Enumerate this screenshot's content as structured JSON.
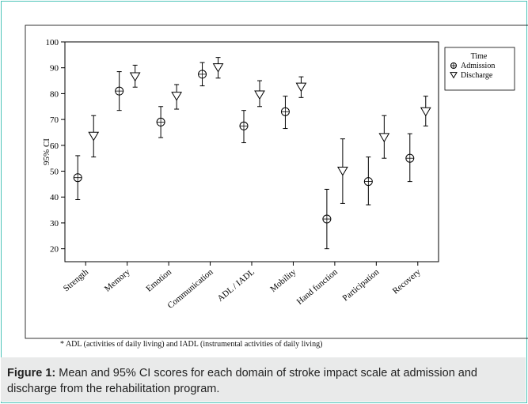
{
  "chart_data": {
    "type": "errorbar",
    "ylabel": "95% CI",
    "ylim": [
      15,
      100
    ],
    "yticks": [
      20,
      30,
      40,
      50,
      60,
      70,
      80,
      90,
      100
    ],
    "grid": false,
    "legend_position": "top-right",
    "legend_title": "Time",
    "categories": [
      "Strength",
      "Memory",
      "Emotion",
      "Communication",
      "ADL / IADL",
      "Mobility",
      "Hand function",
      "Participation",
      "Recovery"
    ],
    "series": [
      {
        "name": "Admission",
        "marker": "circle-plus",
        "mean": [
          47.5,
          81,
          69,
          87.5,
          67.5,
          73,
          31.5,
          46,
          55
        ],
        "lower": [
          39,
          73.5,
          63,
          83,
          61,
          66.5,
          20,
          37,
          46
        ],
        "upper": [
          56,
          88.5,
          75,
          92,
          73.5,
          79,
          43,
          55.5,
          64.5
        ]
      },
      {
        "name": "Discharge",
        "marker": "triangle-down",
        "mean": [
          63.5,
          86.5,
          79,
          90,
          79.5,
          82.5,
          50,
          63,
          73
        ],
        "lower": [
          55.5,
          82.5,
          74,
          86,
          75,
          78.5,
          37.5,
          55,
          67.5
        ],
        "upper": [
          71.5,
          91,
          83.5,
          94,
          85,
          86.5,
          62.5,
          71.5,
          79
        ]
      }
    ]
  },
  "footnote": "* ADL (activities of daily living) and IADL (instrumental activities of daily living)",
  "caption": {
    "label": "Figure 1:",
    "text": " Mean and 95% CI scores for each domain of stroke impact scale at admission and discharge from the rehabilitation program."
  }
}
